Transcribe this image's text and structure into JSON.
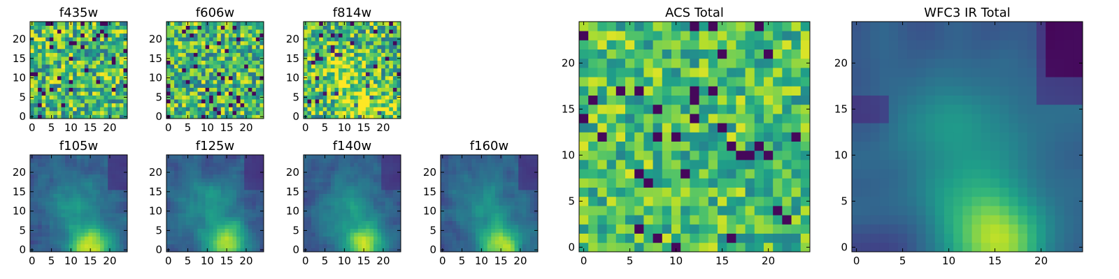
{
  "chart_data": [
    {
      "type": "heatmap",
      "title": "f435w",
      "n": 25,
      "colormap": "viridis",
      "x_ticks": [
        0,
        5,
        10,
        15,
        20
      ],
      "y_ticks": [
        0,
        5,
        10,
        15,
        20
      ],
      "field": "noise",
      "seed": 11,
      "vmin": 0,
      "vmax": 1
    },
    {
      "type": "heatmap",
      "title": "f606w",
      "n": 25,
      "colormap": "viridis",
      "x_ticks": [
        0,
        5,
        10,
        15,
        20
      ],
      "y_ticks": [
        0,
        5,
        10,
        15,
        20
      ],
      "field": "noise",
      "seed": 23,
      "vmin": 0,
      "vmax": 1
    },
    {
      "type": "heatmap",
      "title": "f814w",
      "n": 25,
      "colormap": "viridis",
      "x_ticks": [
        0,
        5,
        10,
        15,
        20
      ],
      "y_ticks": [
        0,
        5,
        10,
        15,
        20
      ],
      "field": "noise-blob",
      "seed": 37,
      "vmin": 0,
      "vmax": 1
    },
    {
      "type": "heatmap",
      "title": "f105w",
      "n": 25,
      "colormap": "viridis",
      "x_ticks": [
        0,
        5,
        10,
        15,
        20
      ],
      "y_ticks": [
        0,
        5,
        10,
        15,
        20
      ],
      "field": "source",
      "seed": 41,
      "vmin": 0,
      "vmax": 1
    },
    {
      "type": "heatmap",
      "title": "f125w",
      "n": 25,
      "colormap": "viridis",
      "x_ticks": [
        0,
        5,
        10,
        15,
        20
      ],
      "y_ticks": [
        0,
        5,
        10,
        15,
        20
      ],
      "field": "source",
      "seed": 53,
      "vmin": 0,
      "vmax": 1
    },
    {
      "type": "heatmap",
      "title": "f140w",
      "n": 25,
      "colormap": "viridis",
      "x_ticks": [
        0,
        5,
        10,
        15,
        20
      ],
      "y_ticks": [
        0,
        5,
        10,
        15,
        20
      ],
      "field": "source",
      "seed": 67,
      "vmin": 0,
      "vmax": 1
    },
    {
      "type": "heatmap",
      "title": "f160w",
      "n": 25,
      "colormap": "viridis",
      "x_ticks": [
        0,
        5,
        10,
        15,
        20
      ],
      "y_ticks": [
        0,
        5,
        10,
        15,
        20
      ],
      "field": "source",
      "seed": 79,
      "vmin": 0,
      "vmax": 1
    },
    {
      "type": "heatmap",
      "title": "ACS Total",
      "n": 25,
      "colormap": "viridis",
      "x_ticks": [
        0,
        5,
        10,
        15,
        20
      ],
      "y_ticks": [
        0,
        5,
        10,
        15,
        20
      ],
      "field": "noise-bright",
      "seed": 83,
      "vmin": 0,
      "vmax": 1
    },
    {
      "type": "heatmap",
      "title": "WFC3 IR Total",
      "n": 25,
      "colormap": "viridis",
      "x_ticks": [
        0,
        5,
        10,
        15,
        20
      ],
      "y_ticks": [
        0,
        5,
        10,
        15,
        20
      ],
      "field": "source-smooth",
      "seed": 97,
      "vmin": 0,
      "vmax": 1
    }
  ]
}
